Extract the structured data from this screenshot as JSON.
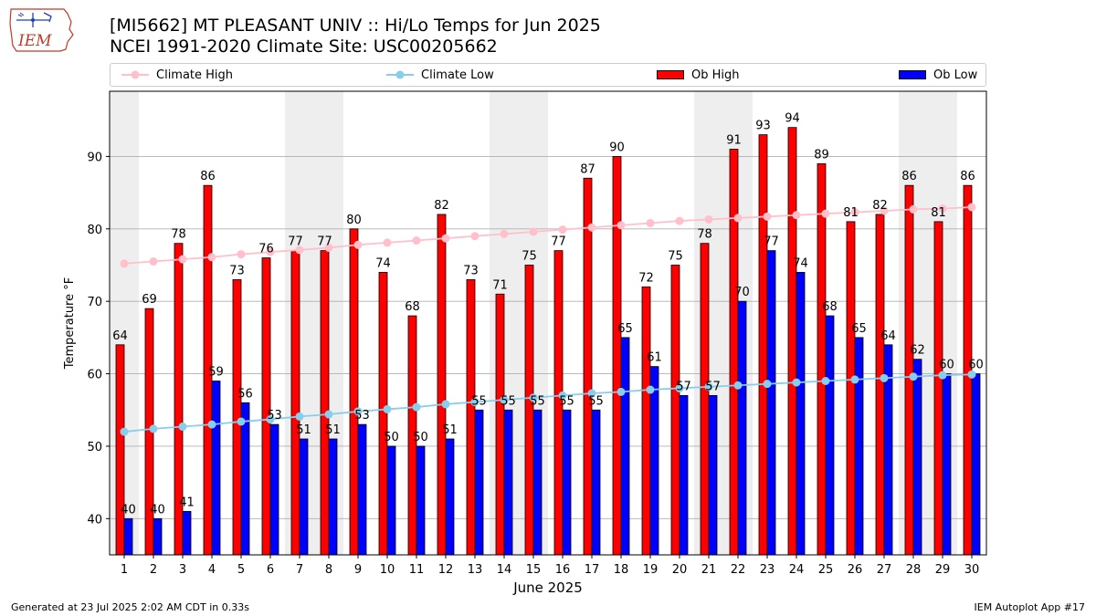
{
  "header": {
    "title_line1": "[MI5662] MT PLEASANT UNIV :: Hi/Lo Temps for Jun 2025",
    "title_line2": "NCEI 1991-2020 Climate Site: USC00205662"
  },
  "logo": {
    "text": "IEM"
  },
  "legend": {
    "climate_high": "Climate High",
    "climate_low": "Climate Low",
    "ob_high": "Ob High",
    "ob_low": "Ob Low"
  },
  "footer": {
    "generated": "Generated at 23 Jul 2025 2:02 AM CDT in 0.33s",
    "app": "IEM Autoplot App #17"
  },
  "colors": {
    "ob_high": "#ff0000",
    "ob_low": "#0000ff",
    "climate_high": "#ffc0cb",
    "climate_low": "#87ceeb",
    "weekend_band": "#eeeeee",
    "grid": "#b0b0b0"
  },
  "chart_data": {
    "type": "bar",
    "xlabel": "June 2025",
    "ylabel": "Temperature °F",
    "ylim": [
      35,
      99
    ],
    "yticks": [
      40,
      50,
      60,
      70,
      80,
      90
    ],
    "grid": "horizontal",
    "legend_position": "top",
    "categories": [
      "1",
      "2",
      "3",
      "4",
      "5",
      "6",
      "7",
      "8",
      "9",
      "10",
      "11",
      "12",
      "13",
      "14",
      "15",
      "16",
      "17",
      "18",
      "19",
      "20",
      "21",
      "22",
      "23",
      "24",
      "25",
      "26",
      "27",
      "28",
      "29",
      "30"
    ],
    "weekend_days": [
      1,
      7,
      8,
      14,
      15,
      21,
      22,
      28,
      29
    ],
    "series": [
      {
        "name": "Ob High",
        "kind": "bar",
        "values": [
          64,
          69,
          78,
          86,
          73,
          76,
          77,
          77,
          80,
          74,
          68,
          82,
          73,
          71,
          75,
          77,
          87,
          90,
          72,
          75,
          78,
          91,
          93,
          94,
          89,
          81,
          82,
          86,
          81,
          86
        ]
      },
      {
        "name": "Ob Low",
        "kind": "bar",
        "values": [
          40,
          40,
          41,
          59,
          56,
          53,
          51,
          51,
          53,
          50,
          50,
          51,
          55,
          55,
          55,
          55,
          55,
          65,
          61,
          57,
          57,
          70,
          77,
          74,
          68,
          65,
          64,
          62,
          60,
          60
        ]
      },
      {
        "name": "Climate High",
        "kind": "line",
        "values": [
          75.2,
          75.5,
          75.8,
          76.1,
          76.5,
          76.8,
          77.1,
          77.4,
          77.8,
          78.1,
          78.4,
          78.7,
          79.0,
          79.3,
          79.6,
          79.9,
          80.2,
          80.5,
          80.8,
          81.1,
          81.3,
          81.5,
          81.7,
          81.9,
          82.1,
          82.3,
          82.5,
          82.7,
          82.8,
          83.0
        ]
      },
      {
        "name": "Climate Low",
        "kind": "line",
        "values": [
          52.0,
          52.4,
          52.7,
          53.0,
          53.4,
          53.7,
          54.1,
          54.4,
          54.8,
          55.1,
          55.4,
          55.8,
          56.1,
          56.4,
          56.7,
          57.0,
          57.3,
          57.5,
          57.8,
          58.0,
          58.2,
          58.4,
          58.6,
          58.8,
          59.0,
          59.2,
          59.4,
          59.6,
          59.8,
          59.9
        ]
      }
    ]
  }
}
